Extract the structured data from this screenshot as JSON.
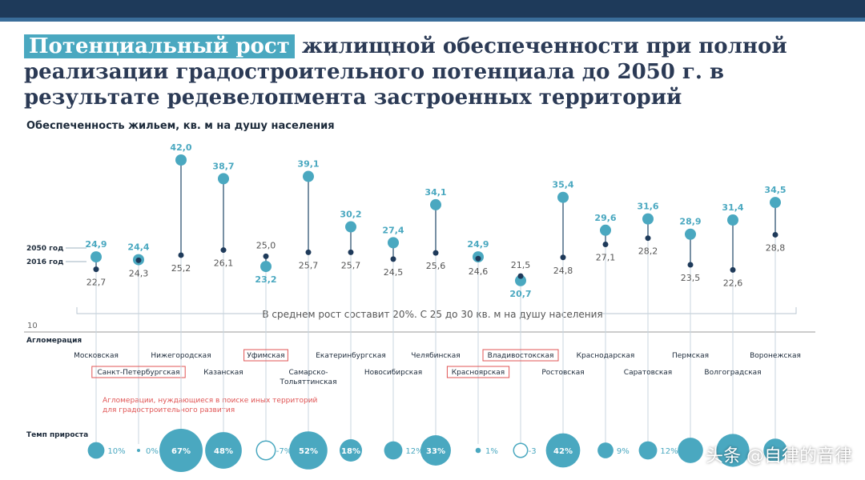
{
  "header": {
    "title_highlight": "Потенциальный рост",
    "title_rest": " жилищной обеспеченности при полной реализации градостроительного потенциала до 2050 г. в результате редевелопмента застроенных территорий"
  },
  "chart_data": {
    "type": "dot-range",
    "subtitle": "Обеспеченность жильем, кв. м на душу населения",
    "legend": {
      "year_2050": "2050 год",
      "year_2016": "2016 год"
    },
    "axis_min_label": "10",
    "average_note": "В среднем рост составит 20%. С 25 до 30 кв. м на душу населения",
    "agglomeration_label": "Агломерация",
    "growth_label": "Темп прироста",
    "footnote": "Агломерации, нуждающиеся в поиске иных территорий для градостроительного развития",
    "series": [
      {
        "name": "2050 год",
        "values": [
          24.9,
          24.4,
          42.0,
          38.7,
          23.2,
          39.1,
          30.2,
          27.4,
          34.1,
          24.9,
          20.7,
          35.4,
          29.6,
          31.6,
          28.9,
          31.4,
          34.5
        ]
      },
      {
        "name": "2016 год",
        "values": [
          22.7,
          24.3,
          25.2,
          26.1,
          25.0,
          25.7,
          25.7,
          24.5,
          25.6,
          24.6,
          21.5,
          24.8,
          27.1,
          28.2,
          23.5,
          22.6,
          28.8
        ]
      }
    ],
    "labels_2050": [
      "24,9",
      "24,4",
      "42,0",
      "38,7",
      "23,2",
      "39,1",
      "30,2",
      "27,4",
      "34,1",
      "24,9",
      "20,7",
      "35,4",
      "29,6",
      "31,6",
      "28,9",
      "31,4",
      "34,5"
    ],
    "labels_2016": [
      "22,7",
      "24,3",
      "25,2",
      "26,1",
      "25,0",
      "25,7",
      "25,7",
      "24,5",
      "25,6",
      "24,6",
      "21,5",
      "24,8",
      "27,1",
      "28,2",
      "23,5",
      "22,6",
      "28,8"
    ],
    "categories": [
      "Московская",
      "Санкт-Петербургская",
      "Нижегородская",
      "Казанская",
      "Уфимская",
      "Самарско-Тольяттинская",
      "Екатеринбургская",
      "Новосибирская",
      "Челябинская",
      "Красноярская",
      "Владивостокская",
      "Ростовская",
      "Краснодарская",
      "Саратовская",
      "Пермская",
      "Волгоградская",
      "Воронежская"
    ],
    "category_lines": [
      [
        "Московская"
      ],
      [
        "Санкт-Петербургская"
      ],
      [
        "Нижегородская"
      ],
      [
        "Казанская"
      ],
      [
        "Уфимская"
      ],
      [
        "Самарско-",
        "Тольяттинская"
      ],
      [
        "Екатеринбургская"
      ],
      [
        "Новосибирская"
      ],
      [
        "Челябинская"
      ],
      [
        "Красноярская"
      ],
      [
        "Владивостокская"
      ],
      [
        "Ростовская"
      ],
      [
        "Краснодарская"
      ],
      [
        "Саратовская"
      ],
      [
        "Пермская"
      ],
      [
        "Волгоградская"
      ],
      [
        "Воронежская"
      ]
    ],
    "flagged": [
      false,
      true,
      false,
      false,
      true,
      false,
      false,
      false,
      false,
      true,
      true,
      false,
      false,
      false,
      false,
      false,
      false
    ],
    "growth_pct": [
      10,
      0,
      67,
      48,
      -7,
      52,
      18,
      12,
      33,
      1,
      -3,
      42,
      9,
      12,
      23,
      39,
      20
    ],
    "growth_labels": [
      "10%",
      "0%",
      "67%",
      "48%",
      "-7%",
      "52%",
      "18%",
      "12%",
      "33%",
      "1%",
      "-3",
      "42%",
      "9%",
      "12%",
      "",
      "",
      ""
    ]
  },
  "colors": {
    "accent": "#4aa8c0",
    "dark": "#1e3a5a",
    "flag": "#e05555",
    "line": "#9ab7c8"
  },
  "watermark": "头条 @自律的音律"
}
